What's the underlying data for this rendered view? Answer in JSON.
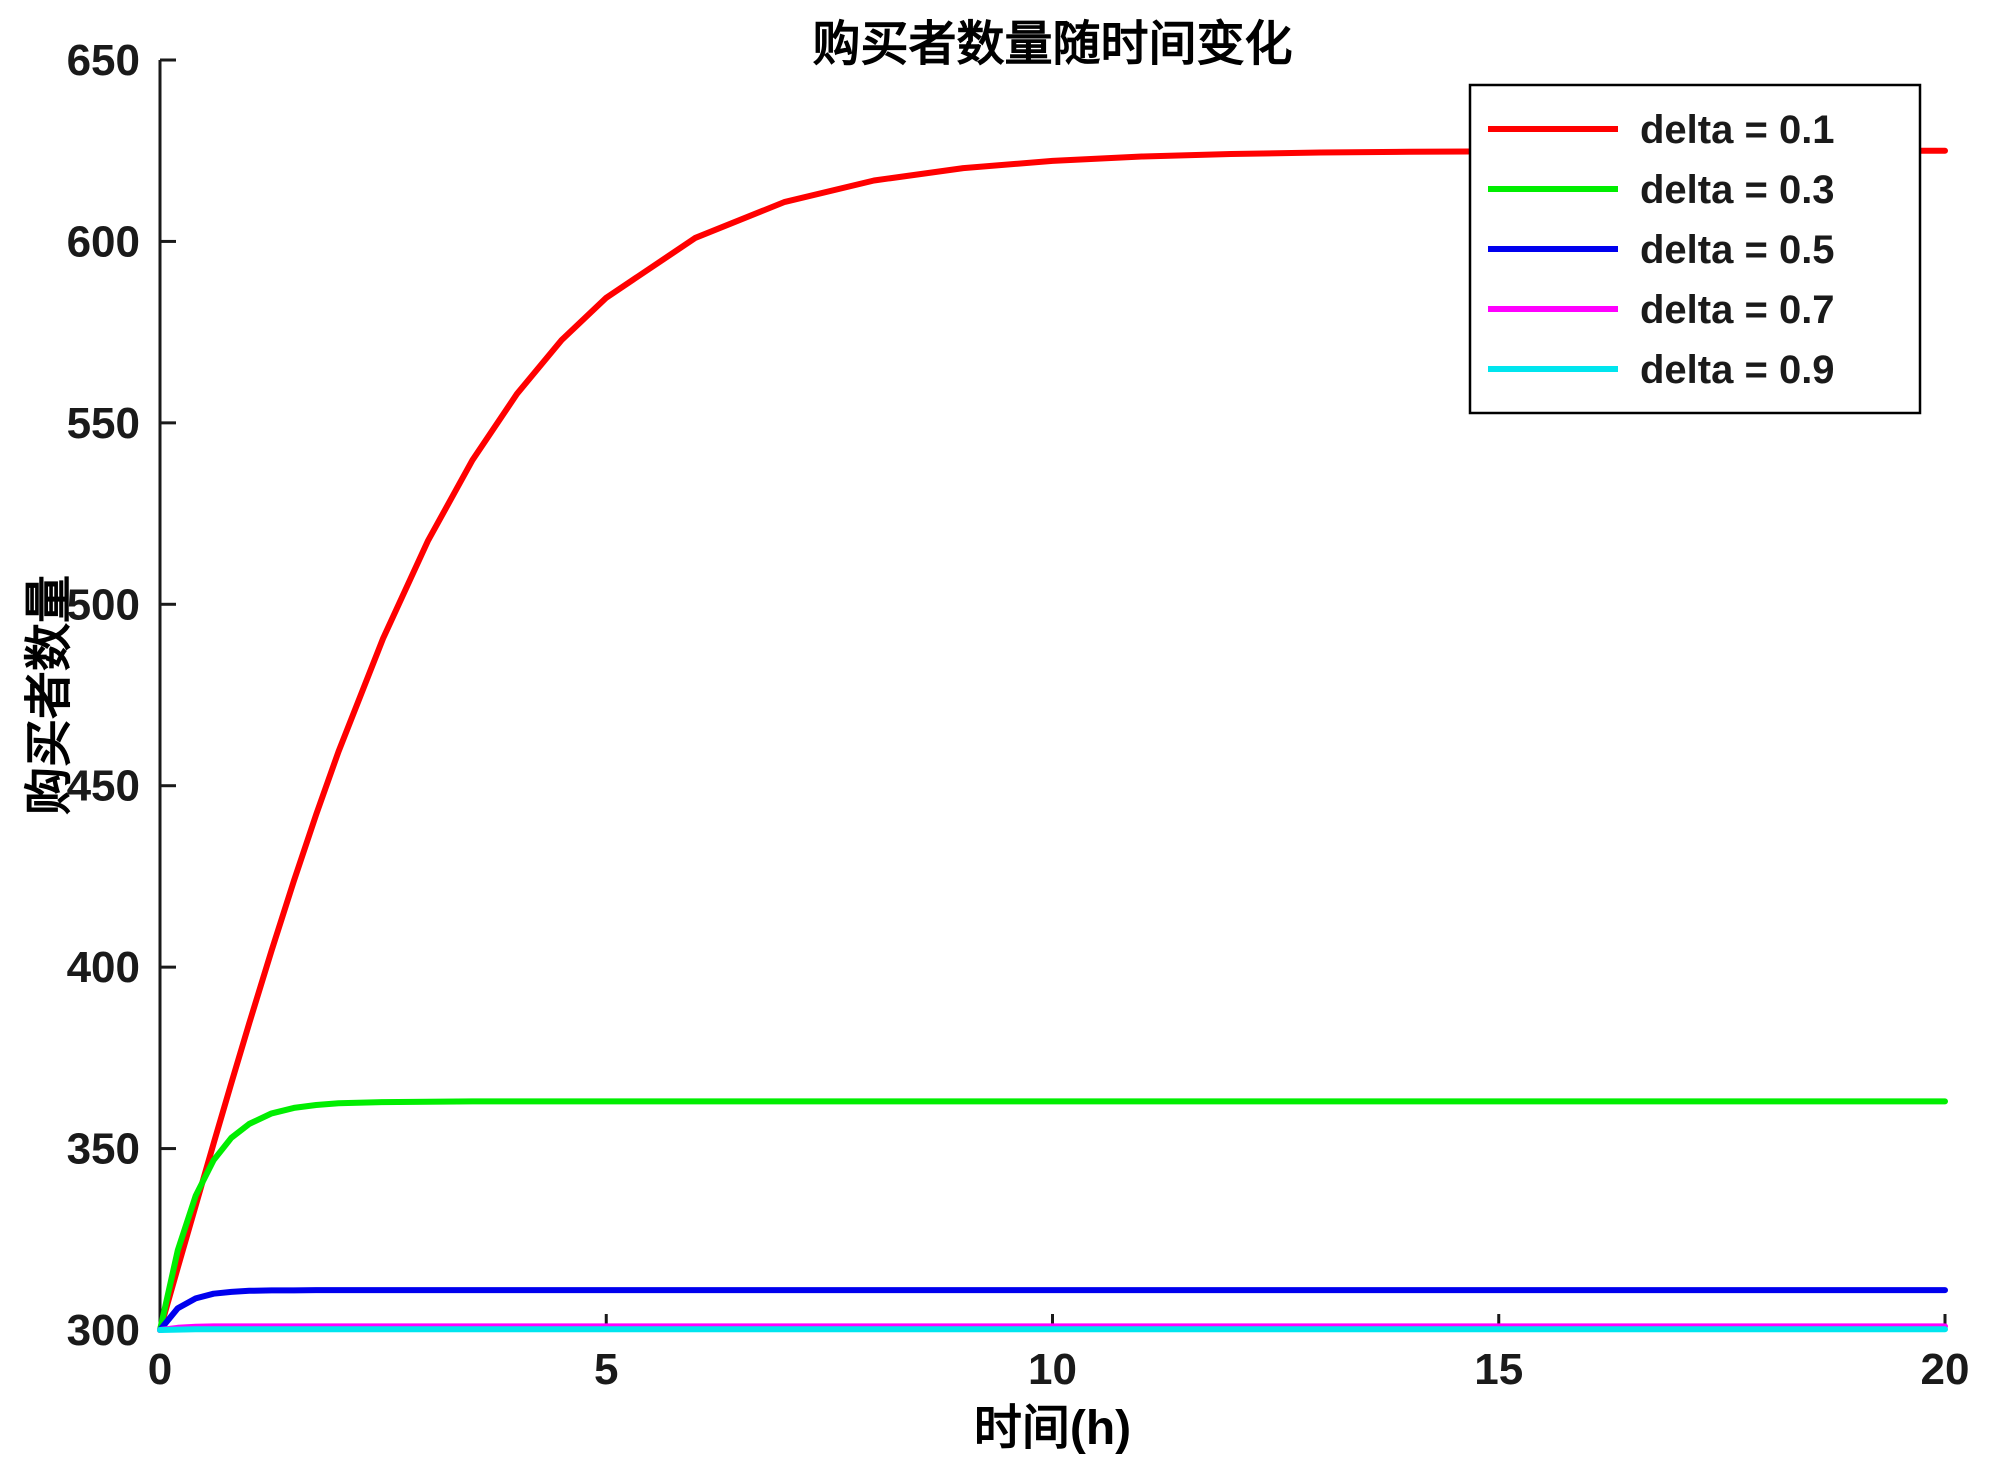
{
  "chart_data": {
    "type": "line",
    "title": "购买者数量随时间变化",
    "xlabel": "时间(h)",
    "ylabel": "购买者数量",
    "xlim": [
      0,
      20
    ],
    "ylim": [
      300,
      650
    ],
    "xticks": [
      0,
      5,
      10,
      15,
      20
    ],
    "yticks": [
      300,
      350,
      400,
      450,
      500,
      550,
      600,
      650
    ],
    "grid": false,
    "legend_position": "northeast",
    "background": "#ffffff",
    "axis_color": "#1a1a1a",
    "x": [
      0,
      0.2,
      0.4,
      0.6,
      0.8,
      1,
      1.25,
      1.5,
      1.75,
      2,
      2.5,
      3,
      3.5,
      4,
      4.5,
      5,
      6,
      7,
      8,
      9,
      10,
      11,
      12,
      13,
      14,
      15,
      16,
      17,
      18,
      19,
      20
    ],
    "series": [
      {
        "name": "delta = 0.1",
        "color": "#ff0000",
        "values": [
          300.0,
          317.2,
          334.3,
          351.4,
          368.1,
          384.6,
          404.6,
          423.8,
          442.1,
          459.4,
          490.6,
          517.4,
          539.7,
          558.0,
          572.8,
          584.5,
          601.0,
          610.9,
          616.8,
          620.2,
          622.2,
          623.4,
          624.1,
          624.5,
          624.7,
          624.8,
          624.9,
          624.9,
          625.0,
          625.0,
          625.0
        ]
      },
      {
        "name": "delta = 0.3",
        "color": "#00ee00",
        "values": [
          300.0,
          322.0,
          337.0,
          346.8,
          353.0,
          356.8,
          359.7,
          361.2,
          362.0,
          362.5,
          362.8,
          362.9,
          363.0,
          363.0,
          363.0,
          363.0,
          363.0,
          363.0,
          363.0,
          363.0,
          363.0,
          363.0,
          363.0,
          363.0,
          363.0,
          363.0,
          363.0,
          363.0,
          363.0,
          363.0,
          363.0
        ]
      },
      {
        "name": "delta = 0.5",
        "color": "#0000ee",
        "values": [
          300.0,
          306.0,
          308.7,
          310.0,
          310.5,
          310.8,
          310.9,
          310.9,
          311.0,
          311.0,
          311.0,
          311.0,
          311.0,
          311.0,
          311.0,
          311.0,
          311.0,
          311.0,
          311.0,
          311.0,
          311.0,
          311.0,
          311.0,
          311.0,
          311.0,
          311.0,
          311.0,
          311.0,
          311.0,
          311.0,
          311.0
        ]
      },
      {
        "name": "delta = 0.7",
        "color": "#ff00ff",
        "values": [
          300.0,
          300.6,
          300.9,
          301.0,
          301.0,
          301.0,
          301.0,
          301.0,
          301.0,
          301.0,
          301.0,
          301.0,
          301.0,
          301.0,
          301.0,
          301.0,
          301.0,
          301.0,
          301.0,
          301.0,
          301.0,
          301.0,
          301.0,
          301.0,
          301.0,
          301.0,
          301.0,
          301.0,
          301.0,
          301.0,
          301.0
        ]
      },
      {
        "name": "delta = 0.9",
        "color": "#00e5ee",
        "values": [
          300.0,
          300.1,
          300.2,
          300.2,
          300.2,
          300.2,
          300.2,
          300.2,
          300.2,
          300.2,
          300.2,
          300.2,
          300.2,
          300.2,
          300.2,
          300.2,
          300.2,
          300.2,
          300.2,
          300.2,
          300.2,
          300.2,
          300.2,
          300.2,
          300.2,
          300.2,
          300.2,
          300.2,
          300.2,
          300.2,
          300.2
        ]
      }
    ]
  }
}
